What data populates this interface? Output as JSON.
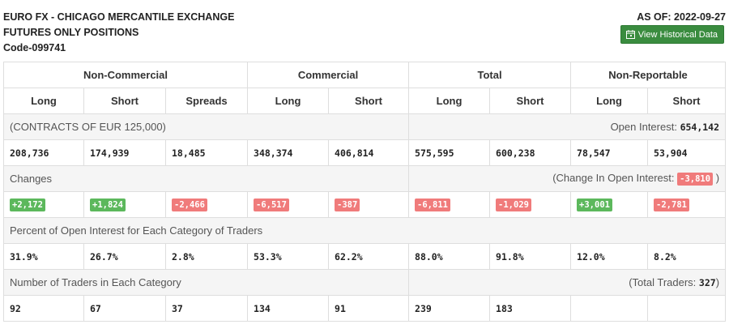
{
  "header": {
    "title_line1": "EURO FX - CHICAGO MERCANTILE EXCHANGE",
    "title_line2": "FUTURES ONLY POSITIONS",
    "code": "Code-099741",
    "as_of": "AS OF: 2022-09-27",
    "historical_button": "View Historical Data"
  },
  "groups": {
    "non_commercial": "Non-Commercial",
    "commercial": "Commercial",
    "total": "Total",
    "non_reportable": "Non-Reportable"
  },
  "subheaders": {
    "nc_long": "Long",
    "nc_short": "Short",
    "nc_spreads": "Spreads",
    "c_long": "Long",
    "c_short": "Short",
    "t_long": "Long",
    "t_short": "Short",
    "nr_long": "Long",
    "nr_short": "Short"
  },
  "contracts": {
    "label": "(CONTRACTS OF EUR 125,000)",
    "open_interest_label": "Open Interest: ",
    "open_interest_value": "654,142"
  },
  "positions": [
    "208,736",
    "174,939",
    "18,485",
    "348,374",
    "406,814",
    "575,595",
    "600,238",
    "78,547",
    "53,904"
  ],
  "changes": {
    "label": "Changes",
    "oi_change_label": "(Change In Open Interest: ",
    "oi_change_value": "-3,810",
    "oi_change_close": " )",
    "values": [
      "+2,172",
      "+1,824",
      "-2,466",
      "-6,517",
      "-387",
      "-6,811",
      "-1,029",
      "+3,001",
      "-2,781"
    ]
  },
  "percent": {
    "label": "Percent of Open Interest for Each Category of Traders",
    "values": [
      "31.9%",
      "26.7%",
      "2.8%",
      "53.3%",
      "62.2%",
      "88.0%",
      "91.8%",
      "12.0%",
      "8.2%"
    ]
  },
  "traders": {
    "label": "Number of Traders in Each Category",
    "total_label": "(Total Traders: ",
    "total_value": "327",
    "total_close": ")",
    "values": [
      "92",
      "67",
      "37",
      "134",
      "91",
      "239",
      "183",
      "",
      ""
    ]
  },
  "colors": {
    "positive": "#5cb85c",
    "negative": "#f07b7b",
    "button": "#3a8c3f"
  },
  "icons": {
    "calendar": "calendar-icon"
  }
}
